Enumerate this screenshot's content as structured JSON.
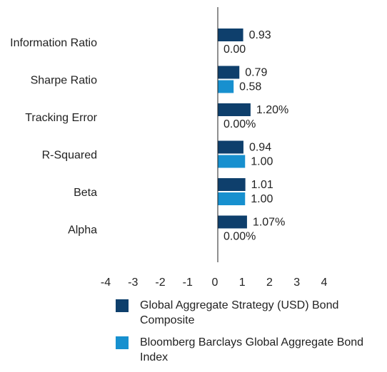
{
  "chart_data": {
    "type": "bar",
    "orientation": "horizontal",
    "categories": [
      "Information Ratio",
      "Sharpe Ratio",
      "Tracking Error",
      "R-Squared",
      "Beta",
      "Alpha"
    ],
    "series": [
      {
        "name": "Global Aggregate Strategy (USD) Bond Composite",
        "color": "#0e3f6c",
        "values": [
          0.93,
          0.79,
          1.2,
          0.94,
          1.01,
          1.07
        ],
        "value_labels": [
          "0.93",
          "0.79",
          "1.20%",
          "0.94",
          "1.01",
          "1.07%"
        ]
      },
      {
        "name": "Bloomberg Barclays Global Aggregate Bond Index",
        "color": "#1790cf",
        "values": [
          0.0,
          0.58,
          0.0,
          1.0,
          1.0,
          0.0
        ],
        "value_labels": [
          "0.00",
          "0.58",
          "0.00%",
          "1.00",
          "1.00",
          "0.00%"
        ]
      }
    ],
    "xlim": [
      -4,
      4
    ],
    "xticks": [
      -4,
      -3,
      -2,
      -1,
      0,
      1,
      2,
      3,
      4
    ],
    "grid": false,
    "legend": "bottom"
  }
}
